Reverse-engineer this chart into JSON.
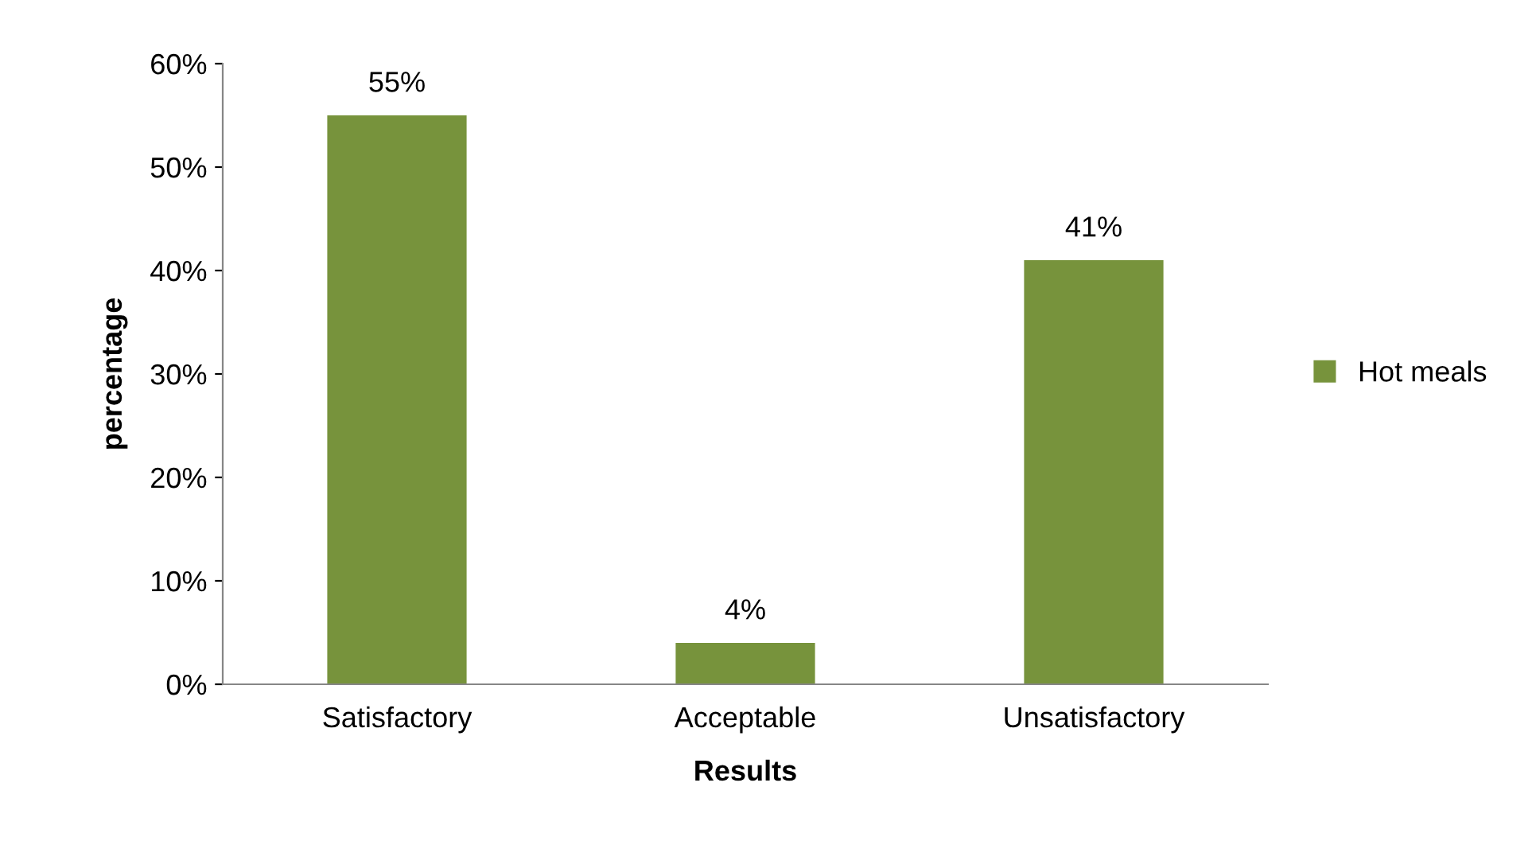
{
  "chart_data": {
    "type": "bar",
    "xlabel": "Results",
    "ylabel": "percentage",
    "categories": [
      "Satisfactory",
      "Acceptable",
      "Unsatisfactory"
    ],
    "series": [
      {
        "name": "Hot meals",
        "color": "#77933c",
        "values": [
          55,
          4,
          41
        ],
        "value_labels": [
          "55%",
          "4%",
          "41%"
        ]
      }
    ],
    "ylim": [
      0,
      60
    ],
    "yticks": [
      {
        "value": 0,
        "label": "0%"
      },
      {
        "value": 10,
        "label": "10%"
      },
      {
        "value": 20,
        "label": "20%"
      },
      {
        "value": 30,
        "label": "30%"
      },
      {
        "value": 40,
        "label": "40%"
      },
      {
        "value": 50,
        "label": "50%"
      },
      {
        "value": 60,
        "label": "60%"
      }
    ],
    "legend": "right"
  }
}
